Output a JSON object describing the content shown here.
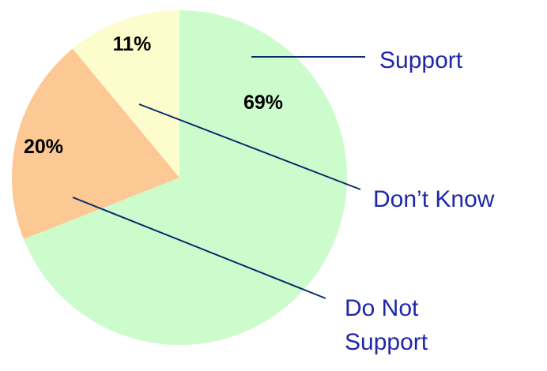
{
  "chart_data": {
    "type": "pie",
    "slices": [
      {
        "label_lines": [
          "Support"
        ],
        "value": 69,
        "value_label": "69%",
        "color": "#ccfccc"
      },
      {
        "label_lines": [
          "Do Not",
          "Support"
        ],
        "value": 20,
        "value_label": "20%",
        "color": "#fcc894"
      },
      {
        "label_lines": [
          "Don’t Know"
        ],
        "value": 11,
        "value_label": "11%",
        "color": "#fcfccc"
      }
    ],
    "label_color": "#1f28a8",
    "leader_color": "#0a2d6e",
    "legend": "callouts"
  }
}
